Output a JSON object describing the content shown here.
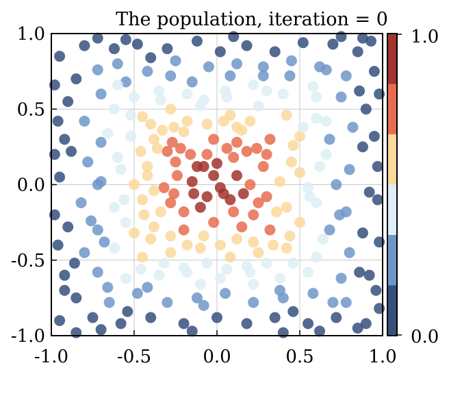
{
  "chart_data": {
    "type": "scatter",
    "title": "The population, iteration = 0",
    "xlabel": "",
    "ylabel": "",
    "xlim": [
      -1.0,
      1.0
    ],
    "ylim": [
      -1.0,
      1.0
    ],
    "xticks": [
      "-1.0",
      "-0.5",
      "0.0",
      "0.5",
      "1.0"
    ],
    "yticks": [
      "-1.0",
      "-0.5",
      "0.0",
      "0.5",
      "1.0"
    ],
    "grid": true,
    "colorbar": {
      "min_label": "0.0",
      "max_label": "1.0",
      "range": [
        0.0,
        1.0
      ],
      "levels": 6,
      "colors": [
        "#36507e",
        "#6f96c8",
        "#ddeef5",
        "#fbd89c",
        "#e76c50",
        "#a1342f"
      ]
    },
    "color_value": "1 - max(|x|, |y|)",
    "points": [
      [
        -0.95,
        0.85
      ],
      [
        -0.72,
        0.97
      ],
      [
        -0.62,
        0.9
      ],
      [
        -0.48,
        0.93
      ],
      [
        -0.3,
        0.9
      ],
      [
        -0.12,
        0.95
      ],
      [
        0.02,
        0.88
      ],
      [
        0.18,
        0.92
      ],
      [
        0.35,
        0.88
      ],
      [
        0.52,
        0.94
      ],
      [
        0.7,
        0.93
      ],
      [
        0.85,
        0.88
      ],
      [
        0.95,
        0.75
      ],
      [
        -0.85,
        0.7
      ],
      [
        -0.6,
        0.8
      ],
      [
        -0.42,
        0.75
      ],
      [
        -0.25,
        0.82
      ],
      [
        -0.05,
        0.78
      ],
      [
        0.12,
        0.8
      ],
      [
        0.28,
        0.78
      ],
      [
        0.45,
        0.82
      ],
      [
        0.62,
        0.78
      ],
      [
        0.78,
        0.72
      ],
      [
        -0.9,
        0.55
      ],
      [
        -0.7,
        0.6
      ],
      [
        -0.55,
        0.68
      ],
      [
        -0.35,
        0.62
      ],
      [
        -0.15,
        0.68
      ],
      [
        0.05,
        0.62
      ],
      [
        0.22,
        0.66
      ],
      [
        0.4,
        0.6
      ],
      [
        0.58,
        0.65
      ],
      [
        0.75,
        0.58
      ],
      [
        0.9,
        0.5
      ],
      [
        -0.8,
        0.42
      ],
      [
        -0.62,
        0.5
      ],
      [
        -0.45,
        0.45
      ],
      [
        -0.28,
        0.5
      ],
      [
        -0.1,
        0.52
      ],
      [
        0.08,
        0.46
      ],
      [
        0.25,
        0.52
      ],
      [
        0.42,
        0.46
      ],
      [
        0.6,
        0.44
      ],
      [
        0.82,
        0.38
      ],
      [
        -0.92,
        0.3
      ],
      [
        -0.7,
        0.28
      ],
      [
        -0.52,
        0.32
      ],
      [
        -0.38,
        0.3
      ],
      [
        -0.2,
        0.35
      ],
      [
        -0.02,
        0.3
      ],
      [
        0.15,
        0.36
      ],
      [
        0.32,
        0.3
      ],
      [
        0.5,
        0.32
      ],
      [
        0.68,
        0.3
      ],
      [
        0.88,
        0.25
      ],
      [
        -0.78,
        0.15
      ],
      [
        -0.6,
        0.18
      ],
      [
        -0.42,
        0.12
      ],
      [
        -0.25,
        0.15
      ],
      [
        -0.08,
        0.12
      ],
      [
        0.1,
        0.18
      ],
      [
        0.28,
        0.12
      ],
      [
        0.45,
        0.15
      ],
      [
        0.62,
        0.12
      ],
      [
        0.8,
        0.1
      ],
      [
        -0.95,
        0.05
      ],
      [
        -0.7,
        0.02
      ],
      [
        -0.5,
        0.0
      ],
      [
        -0.32,
        -0.02
      ],
      [
        -0.15,
        0.02
      ],
      [
        0.02,
        -0.02
      ],
      [
        0.2,
        0.0
      ],
      [
        0.38,
        0.02
      ],
      [
        0.55,
        -0.02
      ],
      [
        0.72,
        0.0
      ],
      [
        0.92,
        -0.05
      ],
      [
        -0.82,
        -0.12
      ],
      [
        -0.62,
        -0.15
      ],
      [
        -0.45,
        -0.1
      ],
      [
        -0.28,
        -0.12
      ],
      [
        -0.1,
        -0.15
      ],
      [
        0.08,
        -0.1
      ],
      [
        0.25,
        -0.12
      ],
      [
        0.42,
        -0.15
      ],
      [
        0.6,
        -0.12
      ],
      [
        0.78,
        -0.18
      ],
      [
        -0.9,
        -0.28
      ],
      [
        -0.72,
        -0.3
      ],
      [
        -0.55,
        -0.25
      ],
      [
        -0.38,
        -0.28
      ],
      [
        -0.2,
        -0.3
      ],
      [
        -0.02,
        -0.25
      ],
      [
        0.15,
        -0.28
      ],
      [
        0.32,
        -0.3
      ],
      [
        0.5,
        -0.25
      ],
      [
        0.68,
        -0.3
      ],
      [
        0.88,
        -0.32
      ],
      [
        -0.8,
        -0.45
      ],
      [
        -0.62,
        -0.42
      ],
      [
        -0.45,
        -0.48
      ],
      [
        -0.28,
        -0.45
      ],
      [
        -0.1,
        -0.42
      ],
      [
        0.08,
        -0.48
      ],
      [
        0.25,
        -0.45
      ],
      [
        0.42,
        -0.42
      ],
      [
        0.6,
        -0.48
      ],
      [
        0.8,
        -0.45
      ],
      [
        -0.92,
        -0.6
      ],
      [
        -0.72,
        -0.58
      ],
      [
        -0.55,
        -0.62
      ],
      [
        -0.35,
        -0.6
      ],
      [
        -0.18,
        -0.58
      ],
      [
        0.02,
        -0.62
      ],
      [
        0.2,
        -0.58
      ],
      [
        0.38,
        -0.62
      ],
      [
        0.55,
        -0.58
      ],
      [
        0.75,
        -0.62
      ],
      [
        0.92,
        -0.6
      ],
      [
        -0.85,
        -0.75
      ],
      [
        -0.65,
        -0.78
      ],
      [
        -0.48,
        -0.72
      ],
      [
        -0.3,
        -0.78
      ],
      [
        -0.12,
        -0.75
      ],
      [
        0.05,
        -0.72
      ],
      [
        0.22,
        -0.78
      ],
      [
        0.4,
        -0.75
      ],
      [
        0.58,
        -0.72
      ],
      [
        0.78,
        -0.78
      ],
      [
        -0.95,
        -0.9
      ],
      [
        -0.75,
        -0.88
      ],
      [
        -0.58,
        -0.92
      ],
      [
        -0.4,
        -0.88
      ],
      [
        -0.2,
        -0.92
      ],
      [
        0.0,
        -0.88
      ],
      [
        0.18,
        -0.92
      ],
      [
        0.35,
        -0.88
      ],
      [
        0.55,
        -0.92
      ],
      [
        0.72,
        -0.88
      ],
      [
        0.9,
        -0.92
      ],
      [
        -0.4,
        0.4
      ],
      [
        -0.33,
        0.36
      ],
      [
        -0.27,
        0.28
      ],
      [
        -0.3,
        0.22
      ],
      [
        -0.36,
        0.24
      ],
      [
        -0.22,
        0.24
      ],
      [
        -0.16,
        0.2
      ],
      [
        -0.12,
        0.12
      ],
      [
        -0.06,
        0.2
      ],
      [
        0.0,
        0.14
      ],
      [
        0.06,
        0.24
      ],
      [
        0.12,
        0.28
      ],
      [
        0.18,
        0.22
      ],
      [
        0.24,
        0.24
      ],
      [
        0.3,
        0.2
      ],
      [
        0.12,
        0.38
      ],
      [
        0.04,
        0.42
      ],
      [
        -0.06,
        0.4
      ],
      [
        -0.18,
        0.42
      ],
      [
        -0.26,
        0.38
      ],
      [
        0.2,
        0.42
      ],
      [
        -0.46,
        0.22
      ],
      [
        -0.42,
        0.06
      ],
      [
        -0.38,
        -0.04
      ],
      [
        -0.44,
        -0.2
      ],
      [
        -0.34,
        -0.18
      ],
      [
        -0.26,
        -0.06
      ],
      [
        -0.2,
        -0.18
      ],
      [
        -0.14,
        -0.06
      ],
      [
        -0.06,
        -0.08
      ],
      [
        0.04,
        -0.06
      ],
      [
        0.1,
        -0.18
      ],
      [
        0.16,
        -0.06
      ],
      [
        0.22,
        -0.2
      ],
      [
        0.3,
        -0.08
      ],
      [
        0.36,
        -0.18
      ],
      [
        0.12,
        0.06
      ],
      [
        -0.02,
        0.06
      ],
      [
        -0.24,
        0.06
      ],
      [
        -0.5,
        -0.32
      ],
      [
        -0.4,
        -0.36
      ],
      [
        -0.28,
        -0.34
      ],
      [
        -0.18,
        -0.4
      ],
      [
        -0.08,
        -0.34
      ],
      [
        0.02,
        -0.4
      ],
      [
        0.12,
        -0.36
      ],
      [
        0.22,
        -0.38
      ],
      [
        0.34,
        -0.4
      ],
      [
        0.44,
        -0.34
      ],
      [
        -0.32,
        -0.52
      ],
      [
        -0.2,
        -0.55
      ],
      [
        -0.06,
        -0.52
      ],
      [
        0.06,
        -0.56
      ],
      [
        0.18,
        -0.54
      ],
      [
        0.3,
        -0.52
      ],
      [
        -0.58,
        0.1
      ],
      [
        -0.56,
        -0.1
      ],
      [
        0.5,
        0.08
      ],
      [
        0.56,
        -0.08
      ],
      [
        0.46,
        0.26
      ],
      [
        0.52,
        0.38
      ],
      [
        -0.52,
        0.46
      ],
      [
        -0.5,
        0.58
      ],
      [
        -0.46,
        -0.56
      ],
      [
        0.46,
        -0.52
      ],
      [
        -0.66,
        0.34
      ],
      [
        -0.68,
        -0.38
      ],
      [
        0.66,
        0.42
      ],
      [
        0.64,
        -0.36
      ],
      [
        -0.18,
        0.6
      ],
      [
        0.06,
        0.58
      ],
      [
        0.3,
        0.62
      ],
      [
        -0.08,
        0.56
      ],
      [
        -0.34,
        0.56
      ],
      [
        0.22,
        -0.66
      ],
      [
        -0.1,
        -0.66
      ],
      [
        -0.6,
        0.66
      ],
      [
        0.6,
        0.58
      ],
      [
        0.66,
        0.2
      ],
      [
        -0.72,
        0.0
      ],
      [
        0.74,
        -0.2
      ],
      [
        -0.76,
        -0.24
      ],
      [
        0.38,
        -0.7
      ],
      [
        -0.42,
        -0.68
      ],
      [
        0.28,
        0.72
      ],
      [
        -0.28,
        0.72
      ],
      [
        -0.98,
        0.66
      ],
      [
        -0.96,
        0.42
      ],
      [
        -0.98,
        -0.2
      ],
      [
        -0.96,
        -0.4
      ],
      [
        0.97,
        0.12
      ],
      [
        0.98,
        -0.38
      ],
      [
        0.96,
        -0.7
      ],
      [
        0.98,
        -0.82
      ],
      [
        0.85,
        -0.95
      ],
      [
        -0.85,
        -0.98
      ],
      [
        0.4,
        -0.98
      ],
      [
        -0.15,
        -0.97
      ],
      [
        0.75,
        0.98
      ],
      [
        0.88,
        0.97
      ],
      [
        0.93,
        0.95
      ],
      [
        0.98,
        0.6
      ],
      [
        -0.8,
        0.92
      ],
      [
        -0.55,
        0.96
      ],
      [
        0.1,
        0.98
      ],
      [
        -0.98,
        0.2
      ],
      [
        0.97,
        -0.1
      ],
      [
        -0.7,
        -0.96
      ],
      [
        0.62,
        -0.97
      ],
      [
        0.95,
        0.32
      ],
      [
        -0.92,
        -0.7
      ],
      [
        -0.86,
        -0.52
      ],
      [
        -0.88,
        0.22
      ],
      [
        0.86,
        0.62
      ],
      [
        0.86,
        -0.58
      ],
      [
        -0.4,
        0.84
      ],
      [
        0.44,
        0.72
      ],
      [
        0.46,
        -0.84
      ],
      [
        -0.54,
        -0.84
      ],
      [
        0.08,
        0.72
      ],
      [
        -0.08,
        -0.8
      ],
      [
        0.66,
        0.76
      ],
      [
        -0.66,
        -0.68
      ],
      [
        0.7,
        -0.78
      ],
      [
        -0.72,
        0.76
      ]
    ]
  }
}
